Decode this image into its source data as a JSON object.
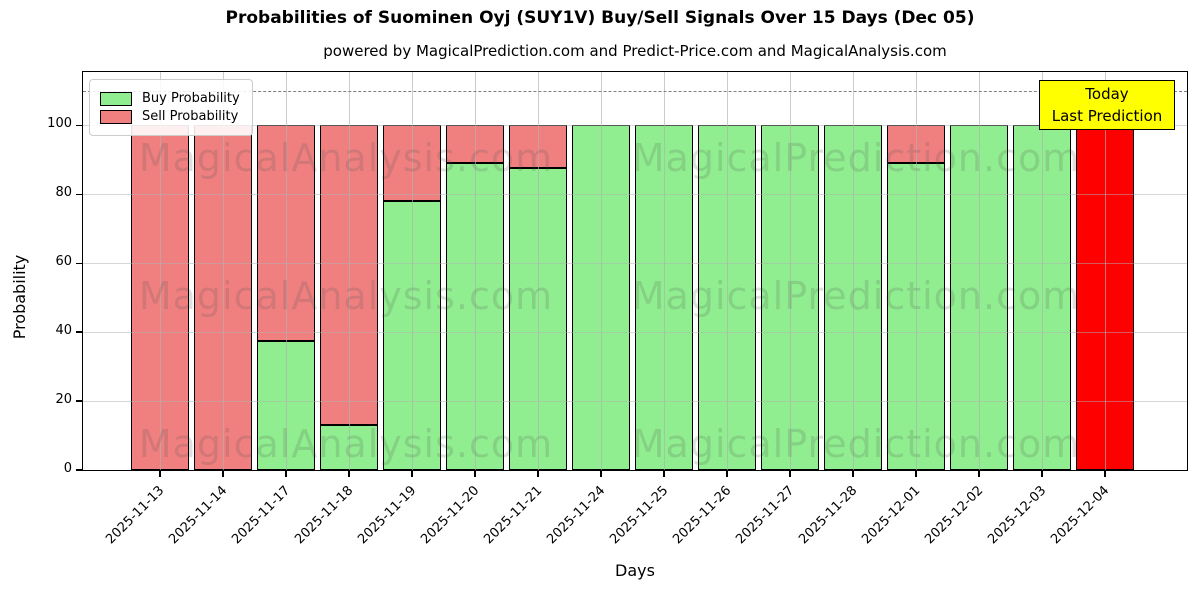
{
  "title": "Probabilities of Suominen Oyj (SUY1V) Buy/Sell Signals Over 15 Days (Dec 05)",
  "subtitle": "powered by MagicalPrediction.com and Predict-Price.com and MagicalAnalysis.com",
  "legend": {
    "buy_label": "Buy Probability",
    "sell_label": "Sell Probability"
  },
  "annotation": {
    "line1": "Today",
    "line2": "Last Prediction"
  },
  "watermarks": {
    "left_text": "MagicalAnalysis.com",
    "right_text": "MagicalPrediction.com"
  },
  "colors": {
    "buy": "#90ee90",
    "sell": "#f08080",
    "today": "#ff0000",
    "annotation_bg": "#ffff00",
    "dashed_line": "#7f7f7f",
    "grid": "#c9c9c9",
    "bar_edge": "#000000"
  },
  "chart_data": {
    "type": "bar",
    "stacked": true,
    "title": "Probabilities of Suominen Oyj (SUY1V) Buy/Sell Signals Over 15 Days (Dec 05)",
    "xlabel": "Days",
    "ylabel": "Probability",
    "categories": [
      "2025-11-13",
      "2025-11-14",
      "2025-11-17",
      "2025-11-18",
      "2025-11-19",
      "2025-11-20",
      "2025-11-21",
      "2025-11-24",
      "2025-11-25",
      "2025-11-26",
      "2025-11-27",
      "2025-11-28",
      "2025-12-01",
      "2025-12-02",
      "2025-12-03",
      "2025-12-04"
    ],
    "series": [
      {
        "name": "Buy Probability",
        "color": "#90ee90",
        "values": [
          0,
          0,
          37.5,
          13,
          78,
          89,
          87.5,
          100,
          100,
          100,
          100,
          100,
          89,
          100,
          100,
          0
        ]
      },
      {
        "name": "Sell Probability",
        "color": "#f08080",
        "values": [
          100,
          100,
          62.5,
          87,
          22,
          11,
          12.5,
          0,
          0,
          0,
          0,
          0,
          11,
          0,
          0,
          100
        ]
      }
    ],
    "today_index": 15,
    "today_color": "#ff0000",
    "yticks": [
      0,
      20,
      40,
      60,
      80,
      100
    ],
    "ylim": [
      0,
      115.5
    ],
    "dashed_line_y": 110,
    "grid": true,
    "legend_position": "upper left"
  }
}
